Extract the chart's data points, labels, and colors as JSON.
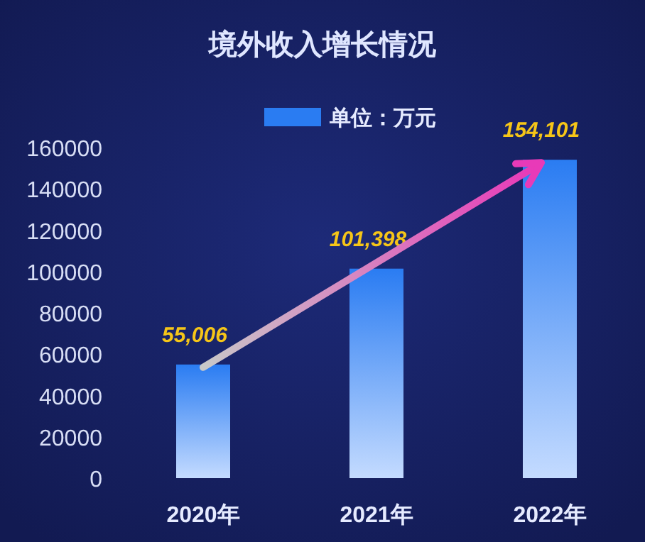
{
  "chart_data": {
    "type": "bar",
    "title": "境外收入增长情况",
    "categories": [
      "2020年",
      "2021年",
      "2022年"
    ],
    "series": [
      {
        "name": "单位：万元",
        "color": "#2a7cf2",
        "values": [
          55006,
          101398,
          154101
        ],
        "value_labels": [
          "55,006",
          "101,398",
          "154,101"
        ]
      }
    ],
    "ylim": [
      0,
      160000
    ],
    "yticks": [
      0,
      20000,
      40000,
      60000,
      80000,
      100000,
      120000,
      140000,
      160000
    ],
    "legend": "top"
  }
}
